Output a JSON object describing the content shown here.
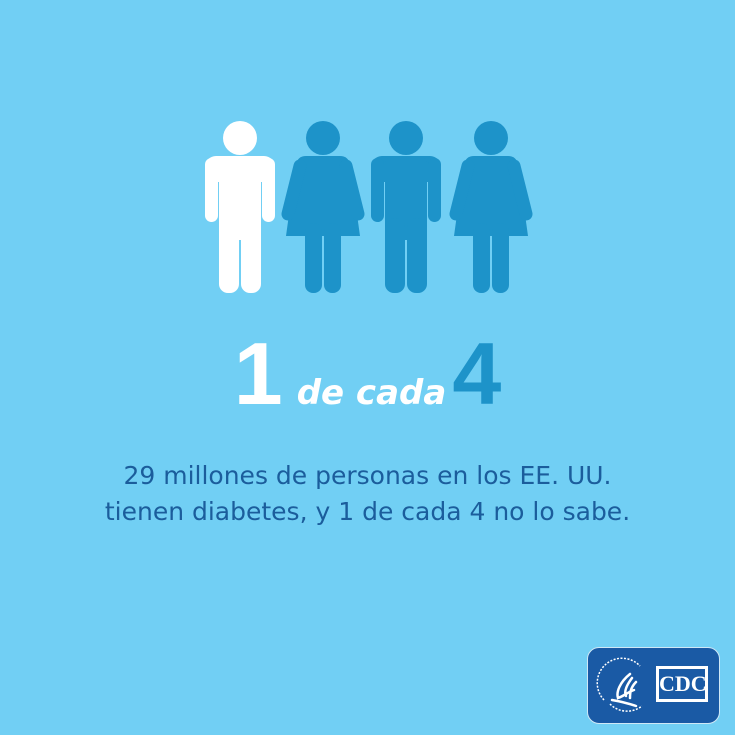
{
  "figures": [
    {
      "type": "man",
      "highlighted": true
    },
    {
      "type": "woman",
      "highlighted": false
    },
    {
      "type": "man",
      "highlighted": false
    },
    {
      "type": "woman",
      "highlighted": false
    }
  ],
  "colors": {
    "background": "#71cff4",
    "highlight": "#ffffff",
    "figure": "#1d93c9",
    "text": "#1b5d9c",
    "logo": "#1a5aa5"
  },
  "headline": {
    "number_a": "1",
    "connector": "de cada",
    "number_b": "4"
  },
  "body": {
    "line1": "29 millones de personas en los EE. UU.",
    "line2": "tienen diabetes, y 1 de cada 4 no lo sabe."
  },
  "logo": {
    "hhs_seal": "hhs-eagle-seal",
    "hhs_text": "DEPARTMENT OF HEALTH & HUMAN SERVICES USA",
    "cdc_text": "CDC"
  }
}
